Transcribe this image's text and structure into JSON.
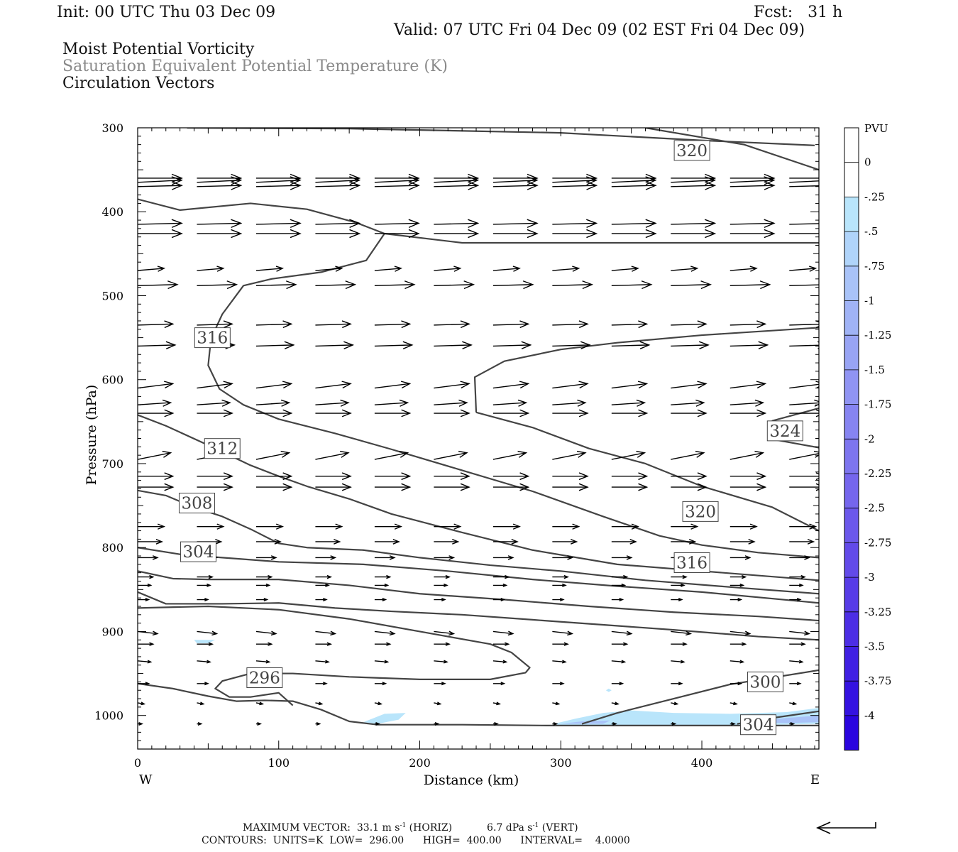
{
  "header": {
    "init": "Init: 00 UTC Thu 03 Dec 09",
    "fcst": "Fcst:   31 h",
    "valid": "Valid: 07 UTC Fri 04 Dec 09 (02 EST Fri 04 Dec 09)",
    "titles": [
      "Moist Potential Vorticity",
      "Saturation Equivalent Potential Temperature (K)",
      "Circulation Vectors"
    ]
  },
  "footer": {
    "max_vector_label": "MAXIMUM VECTOR:",
    "horiz_value": "33.1 m s",
    "horiz_unit": "(HORIZ)",
    "vert_value": "6.7 dPa s",
    "vert_unit": "(VERT)",
    "exp": "-1",
    "contours_line": "CONTOURS:  UNITS=K  LOW=  296.00      HIGH=  400.00      INTERVAL=    4.0000"
  },
  "colorbar": {
    "unit": "PVU",
    "labels": [
      "0",
      "-.25",
      "-.5",
      "-.75",
      "-1",
      "-1.25",
      "-1.5",
      "-1.75",
      "-2",
      "-2.25",
      "-2.5",
      "-2.75",
      "-3",
      "-3.25",
      "-3.5",
      "-3.75",
      "-4"
    ],
    "colors": [
      "#ffffff",
      "#ffffff",
      "#b9e5fb",
      "#b0d4fa",
      "#a9c3f8",
      "#a0b3f6",
      "#98a4f4",
      "#9094f3",
      "#8684f1",
      "#7d75ef",
      "#7566ed",
      "#6b58eb",
      "#624ae9",
      "#573ce7",
      "#4c2ee5",
      "#4020e3",
      "#3412e1",
      "#2a05df"
    ]
  },
  "chart_data": {
    "type": "contour",
    "xlabel": "Distance (km)",
    "ylabel": "Pressure (hPa)",
    "xlim": [
      0,
      483
    ],
    "ylim": [
      1040,
      300
    ],
    "y_log": false,
    "x_ticks": [
      0,
      100,
      200,
      300,
      400
    ],
    "y_ticks": [
      300,
      400,
      500,
      600,
      700,
      800,
      900,
      1000
    ],
    "x_end_labels": [
      "W",
      "E"
    ],
    "contour_color": "#444444",
    "contours": [
      {
        "label": "320",
        "points": [
          [
            35,
            300
          ],
          [
            150,
            301
          ],
          [
            300,
            306
          ],
          [
            400,
            315
          ],
          [
            480,
            321
          ]
        ]
      },
      {
        "label": "320",
        "points": [
          [
            360,
            300
          ],
          [
            430,
            320
          ],
          [
            483,
            350
          ]
        ]
      },
      {
        "label": "316",
        "points": [
          [
            0,
            385
          ],
          [
            30,
            398
          ],
          [
            80,
            390
          ],
          [
            120,
            397
          ],
          [
            155,
            413
          ],
          [
            175,
            426
          ],
          [
            162,
            458
          ],
          [
            130,
            472
          ],
          [
            95,
            480
          ],
          [
            75,
            488
          ],
          [
            60,
            522
          ],
          [
            52,
            551
          ],
          [
            50,
            583
          ],
          [
            58,
            611
          ],
          [
            75,
            630
          ],
          [
            100,
            647
          ],
          [
            140,
            664
          ],
          [
            180,
            683
          ],
          [
            230,
            708
          ],
          [
            280,
            733
          ],
          [
            330,
            763
          ],
          [
            370,
            786
          ],
          [
            400,
            797
          ],
          [
            440,
            806
          ],
          [
            483,
            812
          ]
        ]
      },
      {
        "label": "320",
        "points": [
          [
            175,
            426
          ],
          [
            230,
            437
          ],
          [
            483,
            437
          ]
        ]
      },
      {
        "label": "320",
        "points": [
          [
            240,
            639
          ],
          [
            280,
            657
          ],
          [
            320,
            682
          ],
          [
            360,
            700
          ],
          [
            400,
            727
          ],
          [
            450,
            752
          ],
          [
            483,
            780
          ]
        ]
      },
      {
        "label": "324",
        "points": [
          [
            240,
            639
          ],
          [
            239,
            597
          ],
          [
            260,
            578
          ],
          [
            300,
            564
          ],
          [
            340,
            556
          ],
          [
            400,
            547
          ],
          [
            483,
            538
          ]
        ]
      },
      {
        "label": "324",
        "points": [
          [
            483,
            634
          ],
          [
            450,
            649
          ],
          [
            450,
            671
          ],
          [
            483,
            681
          ]
        ]
      },
      {
        "label": "312",
        "points": [
          [
            0,
            642
          ],
          [
            20,
            655
          ],
          [
            50,
            678
          ],
          [
            80,
            702
          ],
          [
            100,
            715
          ],
          [
            120,
            727
          ],
          [
            150,
            742
          ],
          [
            180,
            760
          ],
          [
            230,
            782
          ],
          [
            280,
            803
          ],
          [
            340,
            820
          ],
          [
            400,
            828
          ],
          [
            483,
            839
          ]
        ]
      },
      {
        "label": "308",
        "points": [
          [
            0,
            732
          ],
          [
            20,
            738
          ],
          [
            40,
            752
          ],
          [
            60,
            763
          ],
          [
            80,
            778
          ],
          [
            100,
            795
          ],
          [
            120,
            800
          ],
          [
            160,
            803
          ],
          [
            200,
            812
          ],
          [
            250,
            821
          ],
          [
            300,
            828
          ],
          [
            360,
            839
          ],
          [
            420,
            847
          ],
          [
            483,
            855
          ]
        ]
      },
      {
        "label": "304",
        "points": [
          [
            0,
            800
          ],
          [
            30,
            808
          ],
          [
            60,
            812
          ],
          [
            100,
            817
          ],
          [
            160,
            820
          ],
          [
            220,
            828
          ],
          [
            280,
            838
          ],
          [
            340,
            846
          ],
          [
            400,
            853
          ],
          [
            483,
            866
          ]
        ]
      },
      {
        "label": "",
        "points": [
          [
            0,
            828
          ],
          [
            25,
            837
          ],
          [
            50,
            838
          ],
          [
            100,
            838
          ],
          [
            150,
            845
          ],
          [
            200,
            855
          ],
          [
            260,
            862
          ],
          [
            320,
            870
          ],
          [
            380,
            877
          ],
          [
            440,
            882
          ],
          [
            483,
            887
          ]
        ]
      },
      {
        "label": "",
        "points": [
          [
            0,
            853
          ],
          [
            20,
            867
          ],
          [
            60,
            867
          ],
          [
            100,
            866
          ],
          [
            140,
            872
          ],
          [
            180,
            876
          ],
          [
            230,
            880
          ],
          [
            280,
            886
          ],
          [
            330,
            892
          ],
          [
            380,
            898
          ],
          [
            440,
            906
          ],
          [
            483,
            910
          ]
        ]
      },
      {
        "label": "300",
        "points": [
          [
            0,
            962
          ],
          [
            25,
            968
          ],
          [
            50,
            977
          ],
          [
            70,
            983
          ],
          [
            90,
            982
          ],
          [
            110,
            983
          ],
          [
            130,
            993
          ],
          [
            150,
            1007
          ],
          [
            170,
            1011
          ],
          [
            230,
            1011
          ],
          [
            290,
            1012
          ],
          [
            483,
            1012
          ]
        ]
      },
      {
        "label": "296",
        "points": [
          [
            110,
            988
          ],
          [
            100,
            973
          ],
          [
            80,
            978
          ],
          [
            65,
            978
          ],
          [
            55,
            968
          ],
          [
            60,
            959
          ],
          [
            80,
            950
          ],
          [
            110,
            950
          ],
          [
            150,
            954
          ],
          [
            200,
            957
          ],
          [
            250,
            957
          ],
          [
            275,
            949
          ],
          [
            278,
            943
          ],
          [
            265,
            925
          ],
          [
            250,
            915
          ],
          [
            200,
            900
          ],
          [
            150,
            885
          ],
          [
            100,
            874
          ],
          [
            50,
            870
          ],
          [
            0,
            872
          ]
        ]
      },
      {
        "label": "300",
        "points": [
          [
            315,
            1010
          ],
          [
            340,
            997
          ],
          [
            380,
            980
          ],
          [
            420,
            963
          ],
          [
            483,
            946
          ]
        ]
      },
      {
        "label": "304",
        "points": [
          [
            425,
            1010
          ],
          [
            450,
            1003
          ],
          [
            483,
            995
          ]
        ]
      }
    ],
    "contour_labels": [
      {
        "text": "320",
        "x": 393,
        "y": 327
      },
      {
        "text": "316",
        "x": 53,
        "y": 550
      },
      {
        "text": "312",
        "x": 60,
        "y": 682
      },
      {
        "text": "308",
        "x": 42,
        "y": 747
      },
      {
        "text": "304",
        "x": 43,
        "y": 805
      },
      {
        "text": "320",
        "x": 399,
        "y": 757
      },
      {
        "text": "316",
        "x": 393,
        "y": 818
      },
      {
        "text": "324",
        "x": 459,
        "y": 661
      },
      {
        "text": "300",
        "x": 445,
        "y": 960
      },
      {
        "text": "304",
        "x": 440,
        "y": 1011
      },
      {
        "text": "296",
        "x": 90,
        "y": 955
      }
    ],
    "pv_shading": [
      {
        "points": [
          [
            40,
            910
          ],
          [
            55,
            910
          ],
          [
            50,
            914
          ],
          [
            42,
            914
          ]
        ],
        "color": "#b9e5fb"
      },
      {
        "points": [
          [
            160,
            1008
          ],
          [
            175,
            998
          ],
          [
            190,
            997
          ],
          [
            185,
            1005
          ],
          [
            170,
            1010
          ]
        ],
        "color": "#b9e5fb"
      },
      {
        "points": [
          [
            332,
            970
          ],
          [
            334,
            968
          ],
          [
            336,
            970
          ],
          [
            334,
            972
          ]
        ],
        "color": "#b9e5fb"
      },
      {
        "points": [
          [
            295,
            1010
          ],
          [
            310,
            1004
          ],
          [
            330,
            997
          ],
          [
            350,
            994
          ],
          [
            380,
            997
          ],
          [
            420,
            998
          ],
          [
            460,
            996
          ],
          [
            483,
            991
          ],
          [
            483,
            1010
          ],
          [
            450,
            1011
          ],
          [
            400,
            1012
          ],
          [
            340,
            1012
          ],
          [
            300,
            1012
          ]
        ],
        "color": "#b9e5fb"
      },
      {
        "points": [
          [
            300,
            1010
          ],
          [
            315,
            1007
          ],
          [
            335,
            1006
          ],
          [
            330,
            1010
          ]
        ],
        "color": "#a9c3f8"
      },
      {
        "points": [
          [
            430,
            1008
          ],
          [
            460,
            1003
          ],
          [
            483,
            1000
          ],
          [
            483,
            1008
          ],
          [
            460,
            1009
          ]
        ],
        "color": "#a9c3f8"
      }
    ],
    "vectors": [
      {
        "p": 360,
        "u": 1.0,
        "w": 0.0
      },
      {
        "p": 365,
        "u": 1.0,
        "w": -0.1
      },
      {
        "p": 370,
        "u": 1.0,
        "w": -0.05
      },
      {
        "p": 415,
        "u": 1.0,
        "w": -0.05
      },
      {
        "p": 426,
        "u": 1.0,
        "w": 0.0
      },
      {
        "p": 470,
        "u": 0.6,
        "w": -0.1
      },
      {
        "p": 488,
        "u": 0.9,
        "w": -0.05
      },
      {
        "p": 535,
        "u": 0.8,
        "w": -0.05
      },
      {
        "p": 560,
        "u": 0.85,
        "w": -0.05
      },
      {
        "p": 610,
        "u": 0.8,
        "w": -0.2
      },
      {
        "p": 630,
        "u": 0.75,
        "w": -0.1
      },
      {
        "p": 640,
        "u": 0.8,
        "w": 0.0
      },
      {
        "p": 695,
        "u": 0.75,
        "w": -0.3
      },
      {
        "p": 715,
        "u": 0.8,
        "w": 0.0
      },
      {
        "p": 728,
        "u": 0.8,
        "w": 0.0
      },
      {
        "p": 775,
        "u": 0.6,
        "w": 0.0
      },
      {
        "p": 793,
        "u": 0.55,
        "w": 0.0
      },
      {
        "p": 812,
        "u": 0.45,
        "w": 0.0
      },
      {
        "p": 835,
        "u": 0.35,
        "w": 0.0
      },
      {
        "p": 845,
        "u": 0.3,
        "w": 0.0
      },
      {
        "p": 862,
        "u": 0.25,
        "w": 0.0
      },
      {
        "p": 900,
        "u": 0.45,
        "w": 0.1
      },
      {
        "p": 915,
        "u": 0.35,
        "w": 0.0
      },
      {
        "p": 935,
        "u": 0.3,
        "w": 0.05
      },
      {
        "p": 962,
        "u": 0.25,
        "w": 0.0
      },
      {
        "p": 985,
        "u": 0.15,
        "w": 0.05
      },
      {
        "p": 1010,
        "u": 0.1,
        "w": 0.0
      }
    ],
    "vector_x": [
      0,
      42,
      84,
      126,
      168,
      210,
      252,
      294,
      336,
      378,
      420,
      462
    ]
  }
}
